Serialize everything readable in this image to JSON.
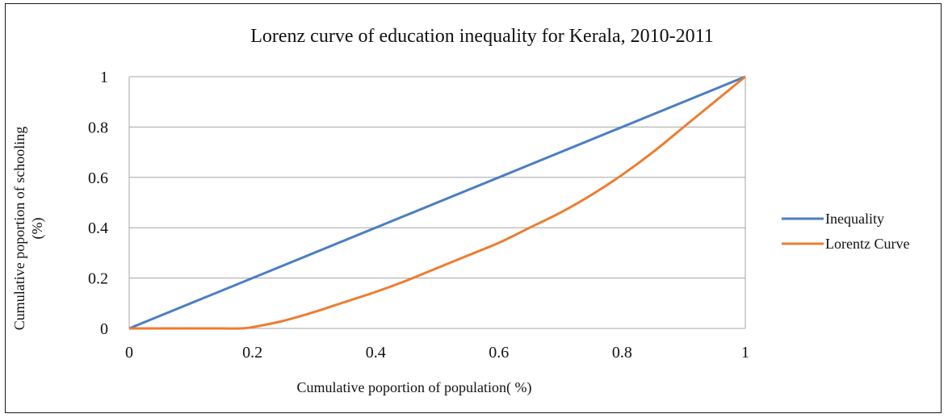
{
  "chart_data": {
    "type": "line",
    "title": "Lorenz curve of education inequality  for Kerala, 2010-2011",
    "xlabel": "Cumulative poportion of population( %)",
    "ylabel_line1": "Cumulative poportion of schooling",
    "ylabel_line2": "(%)",
    "xlim": [
      0,
      1
    ],
    "ylim": [
      0,
      1
    ],
    "x_ticks": [
      "0",
      "0.2",
      "0.4",
      "0.6",
      "0.8",
      "1"
    ],
    "y_ticks": [
      "0",
      "0.2",
      "0.4",
      "0.6",
      "0.8",
      "1"
    ],
    "grid": true,
    "legend_position": "right",
    "series": [
      {
        "name": "Inequality",
        "color": "#4a7fc1",
        "x": [
          0,
          1
        ],
        "y": [
          0,
          1
        ]
      },
      {
        "name": "Lorentz Curve",
        "color": "#ed7d31",
        "x": [
          0,
          0.05,
          0.1,
          0.15,
          0.18,
          0.2,
          0.25,
          0.3,
          0.35,
          0.4,
          0.45,
          0.5,
          0.55,
          0.6,
          0.65,
          0.7,
          0.75,
          0.8,
          0.85,
          0.9,
          0.95,
          1
        ],
        "y": [
          0,
          0,
          0,
          0,
          0,
          0.005,
          0.03,
          0.065,
          0.105,
          0.145,
          0.19,
          0.24,
          0.29,
          0.34,
          0.4,
          0.46,
          0.53,
          0.61,
          0.7,
          0.8,
          0.9,
          1
        ]
      }
    ]
  }
}
